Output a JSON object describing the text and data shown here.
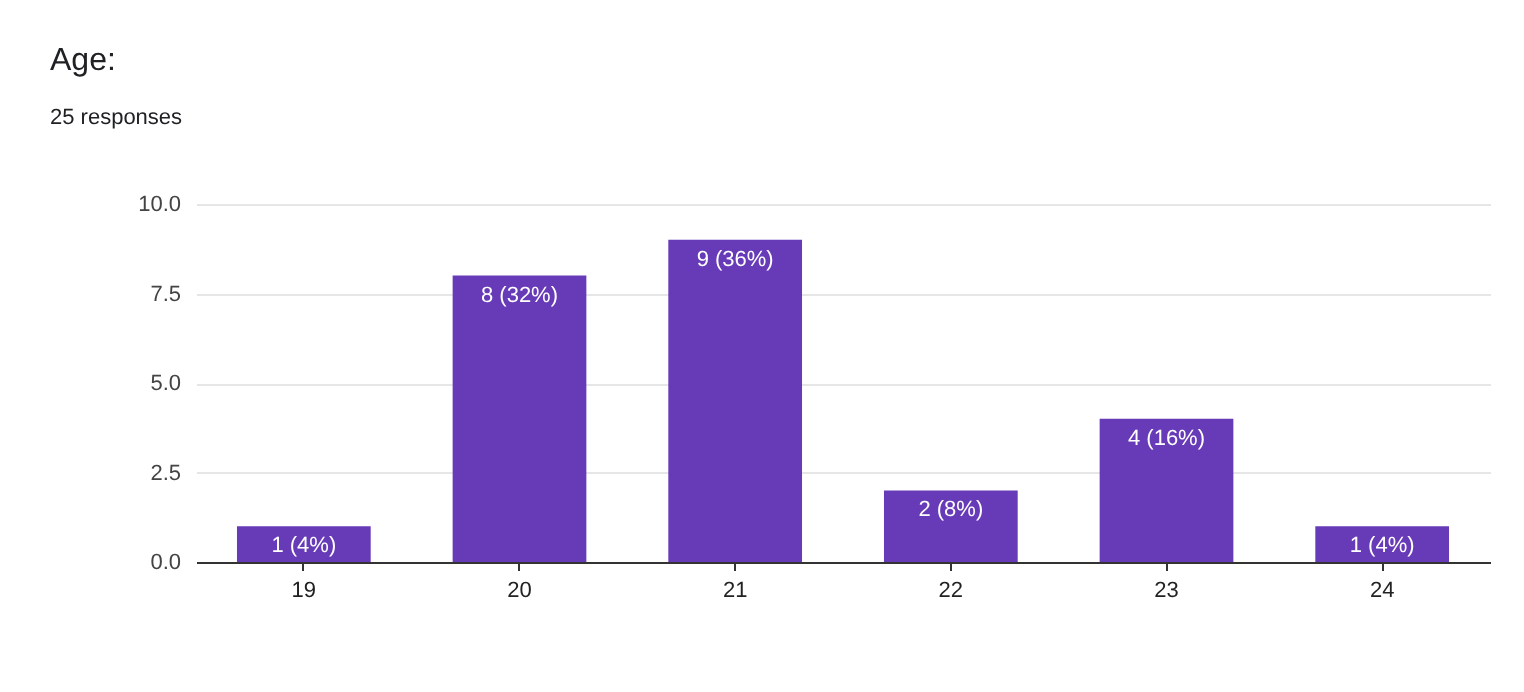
{
  "chart_data": {
    "type": "bar",
    "title": "Age:",
    "subtitle": "25 responses",
    "categories": [
      "19",
      "20",
      "21",
      "22",
      "23",
      "24"
    ],
    "values": [
      1,
      8,
      9,
      2,
      4,
      1
    ],
    "value_labels": [
      "1 (4%)",
      "8 (32%)",
      "9 (36%)",
      "2 (8%)",
      "4 (16%)",
      "1 (4%)"
    ],
    "color": "#673ab7",
    "ylim": [
      0,
      10
    ],
    "yticks": [
      {
        "value": 0,
        "label": "0.0"
      },
      2.5,
      {
        "value": 5,
        "label": "5.0"
      },
      7.5,
      {
        "value": 10,
        "label": "10.0"
      }
    ],
    "grid": "y"
  }
}
